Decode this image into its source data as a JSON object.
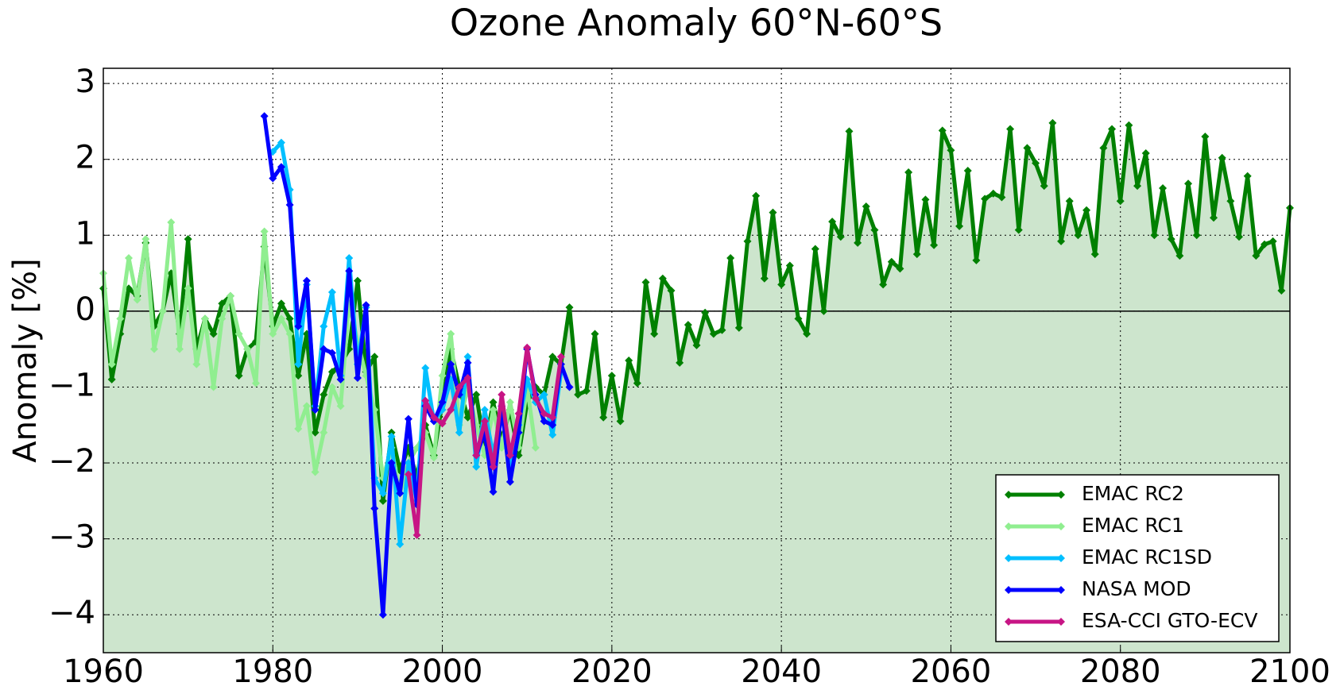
{
  "chart_data": {
    "type": "line",
    "title": "Ozone Anomaly 60°N-60°S",
    "y_label": "Anomaly [%]",
    "xlim": [
      1960,
      2100
    ],
    "xticks": [
      1960,
      1980,
      2000,
      2020,
      2040,
      2060,
      2080,
      2100
    ],
    "ylim": [
      -4.5,
      3.2
    ],
    "yticks": [
      {
        "value": -4,
        "label": "−4"
      },
      {
        "value": -3,
        "label": "−3"
      },
      {
        "value": -2,
        "label": "−2"
      },
      {
        "value": -1,
        "label": "−1"
      },
      0,
      1,
      2,
      3
    ],
    "grid": true,
    "legend": "lower right",
    "fill_color": "#cde5cd",
    "series": [
      {
        "name": "EMAC RC2",
        "color": "#008000",
        "fill": true,
        "x": [
          1960,
          1961,
          1962,
          1963,
          1964,
          1965,
          1966,
          1967,
          1968,
          1969,
          1970,
          1971,
          1972,
          1973,
          1974,
          1975,
          1976,
          1977,
          1978,
          1979,
          1980,
          1981,
          1982,
          1983,
          1984,
          1985,
          1986,
          1987,
          1988,
          1989,
          1990,
          1991,
          1992,
          1993,
          1994,
          1995,
          1996,
          1997,
          1998,
          1999,
          2000,
          2001,
          2002,
          2003,
          2004,
          2005,
          2006,
          2007,
          2008,
          2009,
          2010,
          2011,
          2012,
          2013,
          2014,
          2015,
          2016,
          2017,
          2018,
          2019,
          2020,
          2021,
          2022,
          2023,
          2024,
          2025,
          2026,
          2027,
          2028,
          2029,
          2030,
          2031,
          2032,
          2033,
          2034,
          2035,
          2036,
          2037,
          2038,
          2039,
          2040,
          2041,
          2042,
          2043,
          2044,
          2045,
          2046,
          2047,
          2048,
          2049,
          2050,
          2051,
          2052,
          2053,
          2054,
          2055,
          2056,
          2057,
          2058,
          2059,
          2060,
          2061,
          2062,
          2063,
          2064,
          2065,
          2066,
          2067,
          2068,
          2069,
          2070,
          2071,
          2072,
          2073,
          2074,
          2075,
          2076,
          2077,
          2078,
          2079,
          2080,
          2081,
          2082,
          2083,
          2084,
          2085,
          2086,
          2087,
          2088,
          2089,
          2090,
          2091,
          2092,
          2093,
          2094,
          2095,
          2096,
          2097,
          2098,
          2099,
          2100
        ],
        "values": [
          0.3,
          -0.9,
          -0.3,
          0.3,
          0.2,
          0.9,
          -0.2,
          0.0,
          0.5,
          -0.3,
          0.95,
          -0.5,
          -0.1,
          -0.3,
          0.1,
          0.2,
          -0.85,
          -0.5,
          -0.4,
          0.85,
          -0.2,
          0.1,
          -0.1,
          -0.85,
          -0.3,
          -1.6,
          -1.1,
          -0.8,
          -0.7,
          -0.5,
          0.4,
          -0.8,
          -0.6,
          -2.5,
          -1.6,
          -2.1,
          -1.8,
          -2.2,
          -1.5,
          -1.9,
          -1.2,
          -0.5,
          -1.0,
          -1.4,
          -1.1,
          -1.8,
          -1.2,
          -1.7,
          -1.3,
          -1.9,
          -1.2,
          -1.0,
          -1.1,
          -0.6,
          -0.7,
          0.05,
          -1.1,
          -1.05,
          -0.3,
          -1.4,
          -0.85,
          -1.45,
          -0.65,
          -0.95,
          0.38,
          -0.3,
          0.43,
          0.27,
          -0.68,
          -0.18,
          -0.45,
          -0.02,
          -0.3,
          -0.25,
          0.7,
          -0.22,
          0.92,
          1.52,
          0.43,
          1.3,
          0.35,
          0.6,
          -0.1,
          -0.3,
          0.82,
          0.0,
          1.18,
          0.98,
          2.37,
          0.9,
          1.38,
          1.07,
          0.35,
          0.65,
          0.56,
          1.83,
          0.75,
          1.47,
          0.87,
          2.38,
          2.12,
          1.12,
          1.85,
          0.67,
          1.48,
          1.55,
          1.5,
          2.4,
          1.07,
          2.15,
          1.95,
          1.65,
          2.48,
          0.92,
          1.45,
          1.0,
          1.33,
          0.75,
          2.15,
          2.4,
          1.45,
          2.45,
          1.65,
          2.08,
          1.0,
          1.62,
          0.95,
          0.73,
          1.68,
          1.0,
          2.3,
          1.23,
          2.02,
          1.45,
          0.98,
          1.78,
          0.73,
          0.88,
          0.92,
          0.27,
          1.36
        ]
      },
      {
        "name": "EMAC RC1",
        "color": "#90ee90",
        "x": [
          1960,
          1961,
          1962,
          1963,
          1964,
          1965,
          1966,
          1967,
          1968,
          1969,
          1970,
          1971,
          1972,
          1973,
          1974,
          1975,
          1976,
          1977,
          1978,
          1979,
          1980,
          1981,
          1982,
          1983,
          1984,
          1985,
          1986,
          1987,
          1988,
          1989,
          1990,
          1991,
          1992,
          1993,
          1994,
          1995,
          1996,
          1997,
          1998,
          1999,
          2000,
          2001,
          2002,
          2003,
          2004,
          2005,
          2006,
          2007,
          2008,
          2009,
          2010,
          2011
        ],
        "values": [
          0.5,
          -0.7,
          -0.1,
          0.7,
          0.15,
          0.95,
          -0.5,
          0.0,
          1.17,
          -0.5,
          0.3,
          -0.7,
          -0.1,
          -1.0,
          -0.1,
          0.2,
          -0.3,
          -0.5,
          -0.95,
          1.05,
          -0.3,
          -0.1,
          -0.3,
          -1.55,
          -1.25,
          -2.12,
          -1.6,
          -1.0,
          -1.25,
          0.1,
          -0.4,
          -0.85,
          -1.3,
          -2.2,
          -1.8,
          -2.4,
          -2.0,
          -1.8,
          -1.6,
          -1.93,
          -0.85,
          -0.3,
          -1.5,
          -1.0,
          -1.5,
          -1.9,
          -1.3,
          -1.8,
          -1.2,
          -1.8,
          -1.0,
          -1.8
        ]
      },
      {
        "name": "EMAC RC1SD",
        "color": "#00bfff",
        "x": [
          1980,
          1981,
          1982,
          1983,
          1984,
          1985,
          1986,
          1987,
          1988,
          1989,
          1990,
          1991,
          1992,
          1993,
          1994,
          1995,
          1996,
          1997,
          1998,
          1999,
          2000,
          2001,
          2002,
          2003,
          2004,
          2005,
          2006,
          2007,
          2008,
          2009,
          2010,
          2011,
          2012,
          2013,
          2014
        ],
        "values": [
          2.1,
          2.22,
          1.6,
          -0.7,
          0.35,
          -1.25,
          -0.2,
          0.25,
          -0.85,
          0.7,
          -0.7,
          0.05,
          -2.2,
          -2.4,
          -1.65,
          -3.07,
          -2.0,
          -2.5,
          -0.75,
          -1.45,
          -1.3,
          -0.9,
          -1.6,
          -0.6,
          -2.05,
          -1.3,
          -1.9,
          -1.3,
          -2.05,
          -1.5,
          -0.9,
          -1.2,
          -1.1,
          -1.63,
          -0.8
        ]
      },
      {
        "name": "NASA MOD",
        "color": "#0000ff",
        "x": [
          1979,
          1980,
          1981,
          1982,
          1983,
          1984,
          1985,
          1986,
          1987,
          1988,
          1989,
          1990,
          1991,
          1992,
          1993,
          1994,
          1995,
          1996,
          1997,
          1998,
          1999,
          2000,
          2001,
          2002,
          2003,
          2004,
          2005,
          2006,
          2007,
          2008,
          2009,
          2010,
          2011,
          2012,
          2013,
          2014,
          2015
        ],
        "values": [
          2.57,
          1.75,
          1.9,
          1.4,
          -0.2,
          0.4,
          -1.3,
          -0.5,
          -0.55,
          -0.9,
          0.53,
          -0.88,
          0.08,
          -2.6,
          -4.0,
          -2.0,
          -2.4,
          -1.42,
          -2.55,
          -1.25,
          -1.45,
          -1.2,
          -0.7,
          -1.1,
          -0.68,
          -1.9,
          -1.6,
          -2.38,
          -1.25,
          -2.25,
          -1.6,
          -0.5,
          -1.1,
          -1.45,
          -1.5,
          -0.7,
          -1.0
        ]
      },
      {
        "name": "ESA-CCI GTO-ECV",
        "color": "#c71585",
        "x": [
          1996,
          1997,
          1998,
          1999,
          2000,
          2001,
          2002,
          2003,
          2004,
          2005,
          2006,
          2007,
          2008,
          2009,
          2010,
          2011,
          2012,
          2013,
          2014
        ],
        "values": [
          -2.15,
          -2.95,
          -1.18,
          -1.4,
          -1.48,
          -1.3,
          -1.0,
          -0.88,
          -1.9,
          -1.45,
          -2.05,
          -1.1,
          -1.9,
          -1.35,
          -0.48,
          -1.15,
          -1.35,
          -1.4,
          -0.6
        ]
      }
    ]
  }
}
